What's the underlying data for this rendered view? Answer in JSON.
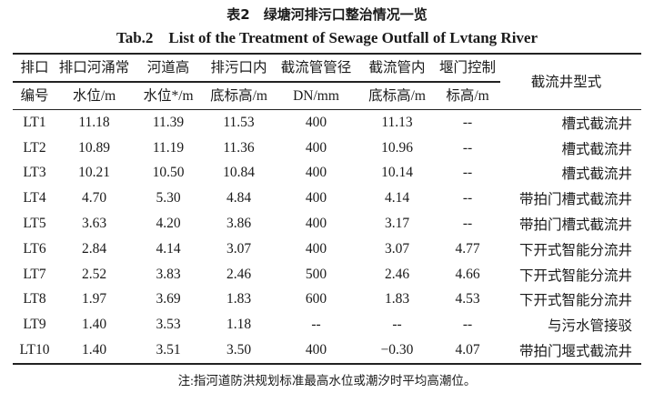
{
  "title_cn": "表2　绿塘河排污口整治情况一览",
  "title_en": "Tab.2　List of the Treatment of Sewage Outfall of Lvtang River",
  "headers": [
    [
      "排口",
      "编号"
    ],
    [
      "排口河涌常",
      "水位/m"
    ],
    [
      "河道高",
      "水位*/m"
    ],
    [
      "排污口内",
      "底标高/m"
    ],
    [
      "截流管管径",
      "DN/mm"
    ],
    [
      "截流管内",
      "底标高/m"
    ],
    [
      "堰门控制",
      "标高/m"
    ],
    [
      "截流井型式"
    ]
  ],
  "rows": [
    [
      "LT1",
      "11.18",
      "11.39",
      "11.53",
      "400",
      "11.13",
      "--",
      "槽式截流井"
    ],
    [
      "LT2",
      "10.89",
      "11.19",
      "11.36",
      "400",
      "10.96",
      "--",
      "槽式截流井"
    ],
    [
      "LT3",
      "10.21",
      "10.50",
      "10.84",
      "400",
      "10.14",
      "--",
      "槽式截流井"
    ],
    [
      "LT4",
      "4.70",
      "5.30",
      "4.84",
      "400",
      "4.14",
      "--",
      "带拍门槽式截流井"
    ],
    [
      "LT5",
      "3.63",
      "4.20",
      "3.86",
      "400",
      "3.17",
      "--",
      "带拍门槽式截流井"
    ],
    [
      "LT6",
      "2.84",
      "4.14",
      "3.07",
      "400",
      "3.07",
      "4.77",
      "下开式智能分流井"
    ],
    [
      "LT7",
      "2.52",
      "3.83",
      "2.46",
      "500",
      "2.46",
      "4.66",
      "下开式智能分流井"
    ],
    [
      "LT8",
      "1.97",
      "3.69",
      "1.83",
      "600",
      "1.83",
      "4.53",
      "下开式智能分流井"
    ],
    [
      "LT9",
      "1.40",
      "3.53",
      "1.18",
      "--",
      "--",
      "--",
      "与污水管接驳"
    ],
    [
      "LT10",
      "1.40",
      "3.51",
      "3.50",
      "400",
      "−0.30",
      "4.07",
      "带拍门堰式截流井"
    ]
  ],
  "note": "注:指河道防洪规划标准最高水位或潮汐时平均高潮位。"
}
